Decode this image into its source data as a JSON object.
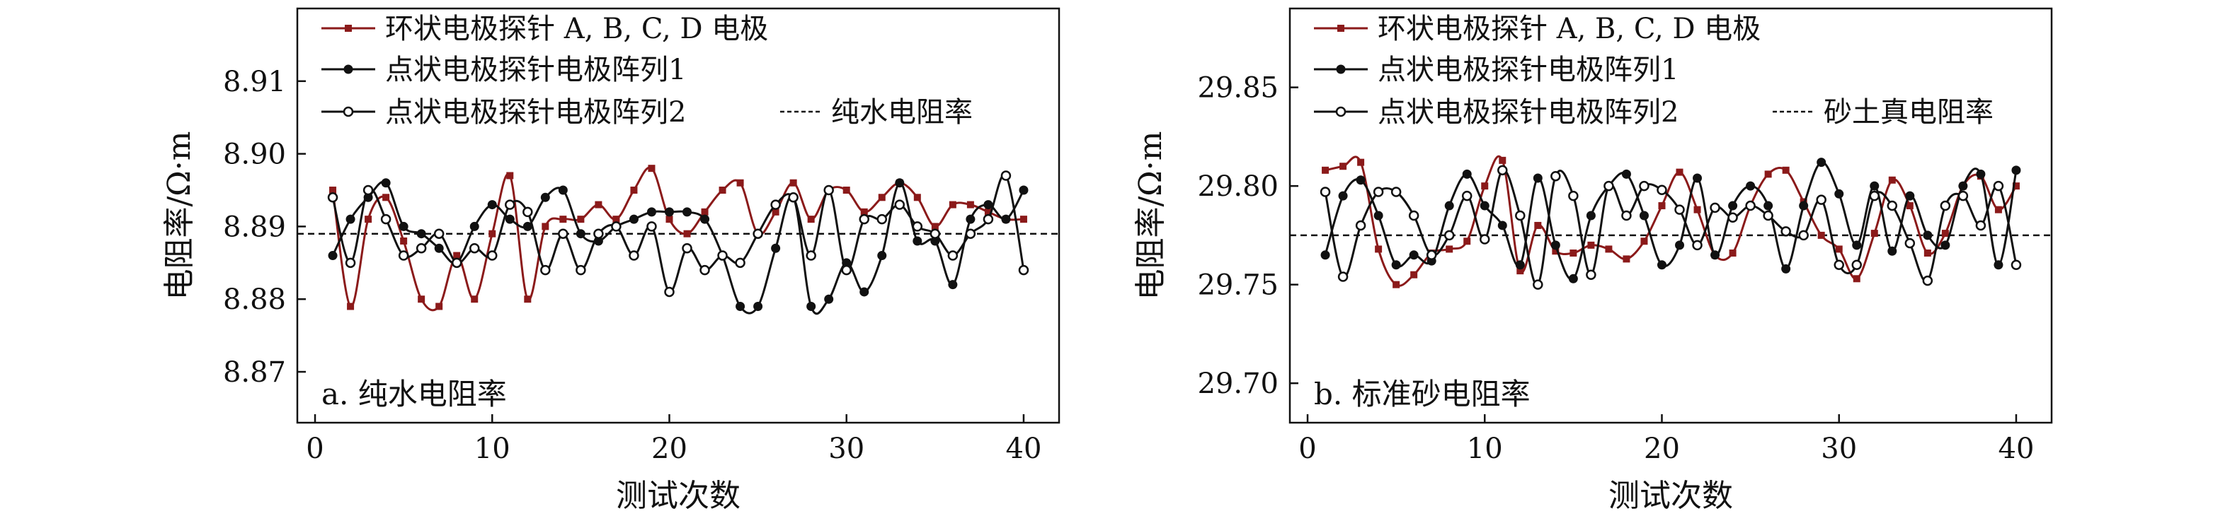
{
  "colors": {
    "ring": "#8b1a1a",
    "array1": "#111111",
    "array2": "#111111",
    "reference": "#111111"
  },
  "chart_data": [
    {
      "type": "line",
      "panel_label": "a. 纯水电阻率",
      "xlabel": "测试次数",
      "ylabel": "电阻率/Ω·m",
      "xlim": [
        -1,
        42
      ],
      "ylim": [
        8.863,
        8.92
      ],
      "xticks": [
        0,
        10,
        20,
        30,
        40
      ],
      "xtick_labels": [
        "0",
        "10",
        "20",
        "30",
        "40"
      ],
      "yticks": [
        8.87,
        8.88,
        8.89,
        8.9,
        8.91
      ],
      "ytick_labels": [
        "8.87",
        "8.88",
        "8.89",
        "8.90",
        "8.91"
      ],
      "legend_position": "top-left",
      "x": [
        1,
        2,
        3,
        4,
        5,
        6,
        7,
        8,
        9,
        10,
        11,
        12,
        13,
        14,
        15,
        16,
        17,
        18,
        19,
        20,
        21,
        22,
        23,
        24,
        25,
        26,
        27,
        28,
        29,
        30,
        31,
        32,
        33,
        34,
        35,
        36,
        37,
        38,
        39,
        40
      ],
      "series": [
        {
          "name": "环状电极探针 A, B, C, D 电极",
          "marker": "square",
          "color_key": "ring",
          "values": [
            8.895,
            8.879,
            8.891,
            8.894,
            8.888,
            8.88,
            8.879,
            8.886,
            8.88,
            8.889,
            8.897,
            8.88,
            8.89,
            8.891,
            8.891,
            8.893,
            8.891,
            8.895,
            8.898,
            8.891,
            8.889,
            8.892,
            8.895,
            8.896,
            8.889,
            8.892,
            8.896,
            8.891,
            8.895,
            8.895,
            8.892,
            8.894,
            8.896,
            8.894,
            8.89,
            8.893,
            8.893,
            8.892,
            8.891,
            8.891
          ]
        },
        {
          "name": "点状电极探针电极阵列1",
          "marker": "filled-circle",
          "color_key": "array1",
          "values": [
            8.886,
            8.891,
            8.894,
            8.896,
            8.89,
            8.889,
            8.887,
            8.885,
            8.89,
            8.893,
            8.891,
            8.89,
            8.894,
            8.895,
            8.889,
            8.888,
            8.89,
            8.891,
            8.892,
            8.892,
            8.892,
            8.891,
            8.886,
            8.879,
            8.879,
            8.887,
            8.894,
            8.879,
            8.88,
            8.885,
            8.881,
            8.886,
            8.896,
            8.888,
            8.888,
            8.882,
            8.891,
            8.893,
            8.891,
            8.895
          ]
        },
        {
          "name": "点状电极探针电极阵列2",
          "marker": "open-circle",
          "color_key": "array2",
          "values": [
            8.894,
            8.885,
            8.895,
            8.891,
            8.886,
            8.887,
            8.889,
            8.885,
            8.887,
            8.886,
            8.893,
            8.892,
            8.884,
            8.889,
            8.884,
            8.889,
            8.89,
            8.886,
            8.89,
            8.881,
            8.887,
            8.884,
            8.886,
            8.885,
            8.889,
            8.893,
            8.894,
            8.886,
            8.895,
            8.884,
            8.891,
            8.891,
            8.893,
            8.89,
            8.889,
            8.886,
            8.889,
            8.891,
            8.897,
            8.884
          ]
        }
      ],
      "reference_line": {
        "name": "纯水电阻率",
        "y": 8.889,
        "style": "dashed",
        "color_key": "reference"
      }
    },
    {
      "type": "line",
      "panel_label": "b. 标准砂电阻率",
      "xlabel": "测试次数",
      "ylabel": "电阻率/Ω·m",
      "xlim": [
        -1,
        42
      ],
      "ylim": [
        29.68,
        29.89
      ],
      "xticks": [
        0,
        10,
        20,
        30,
        40
      ],
      "xtick_labels": [
        "0",
        "10",
        "20",
        "30",
        "40"
      ],
      "yticks": [
        29.7,
        29.75,
        29.8,
        29.85
      ],
      "ytick_labels": [
        "29.70",
        "29.75",
        "29.80",
        "29.85"
      ],
      "legend_position": "top-left",
      "x": [
        1,
        2,
        3,
        4,
        5,
        6,
        7,
        8,
        9,
        10,
        11,
        12,
        13,
        14,
        15,
        16,
        17,
        18,
        19,
        20,
        21,
        22,
        23,
        24,
        25,
        26,
        27,
        28,
        29,
        30,
        31,
        32,
        33,
        34,
        35,
        36,
        37,
        38,
        39,
        40
      ],
      "series": [
        {
          "name": "环状电极探针 A, B, C, D 电极",
          "marker": "square",
          "color_key": "ring",
          "values": [
            29.808,
            29.81,
            29.812,
            29.768,
            29.75,
            29.755,
            29.766,
            29.768,
            29.772,
            29.8,
            29.813,
            29.757,
            29.78,
            29.767,
            29.766,
            29.77,
            29.768,
            29.763,
            29.772,
            29.79,
            29.807,
            29.788,
            29.765,
            29.766,
            29.79,
            29.806,
            29.808,
            29.792,
            29.775,
            29.768,
            29.753,
            29.776,
            29.803,
            29.79,
            29.766,
            29.776,
            29.8,
            29.805,
            29.788,
            29.8
          ]
        },
        {
          "name": "点状电极探针电极阵列1",
          "marker": "filled-circle",
          "color_key": "array1",
          "values": [
            29.765,
            29.795,
            29.803,
            29.785,
            29.76,
            29.765,
            29.762,
            29.79,
            29.806,
            29.79,
            29.78,
            29.76,
            29.804,
            29.77,
            29.753,
            29.785,
            29.8,
            29.806,
            29.785,
            29.76,
            29.77,
            29.804,
            29.765,
            29.79,
            29.8,
            29.79,
            29.758,
            29.79,
            29.812,
            29.796,
            29.77,
            29.8,
            29.767,
            29.795,
            29.775,
            29.77,
            29.8,
            29.806,
            29.76,
            29.808
          ]
        },
        {
          "name": "点状电极探针电极阵列2",
          "marker": "open-circle",
          "color_key": "array2",
          "values": [
            29.797,
            29.754,
            29.78,
            29.797,
            29.797,
            29.785,
            29.765,
            29.775,
            29.795,
            29.773,
            29.808,
            29.785,
            29.75,
            29.805,
            29.795,
            29.755,
            29.8,
            29.785,
            29.8,
            29.798,
            29.788,
            29.77,
            29.789,
            29.784,
            29.79,
            29.785,
            29.777,
            29.775,
            29.793,
            29.76,
            29.76,
            29.795,
            29.79,
            29.771,
            29.752,
            29.79,
            29.795,
            29.78,
            29.8,
            29.76
          ]
        }
      ],
      "reference_line": {
        "name": "砂土真电阻率",
        "y": 29.775,
        "style": "dashed",
        "color_key": "reference"
      }
    }
  ]
}
